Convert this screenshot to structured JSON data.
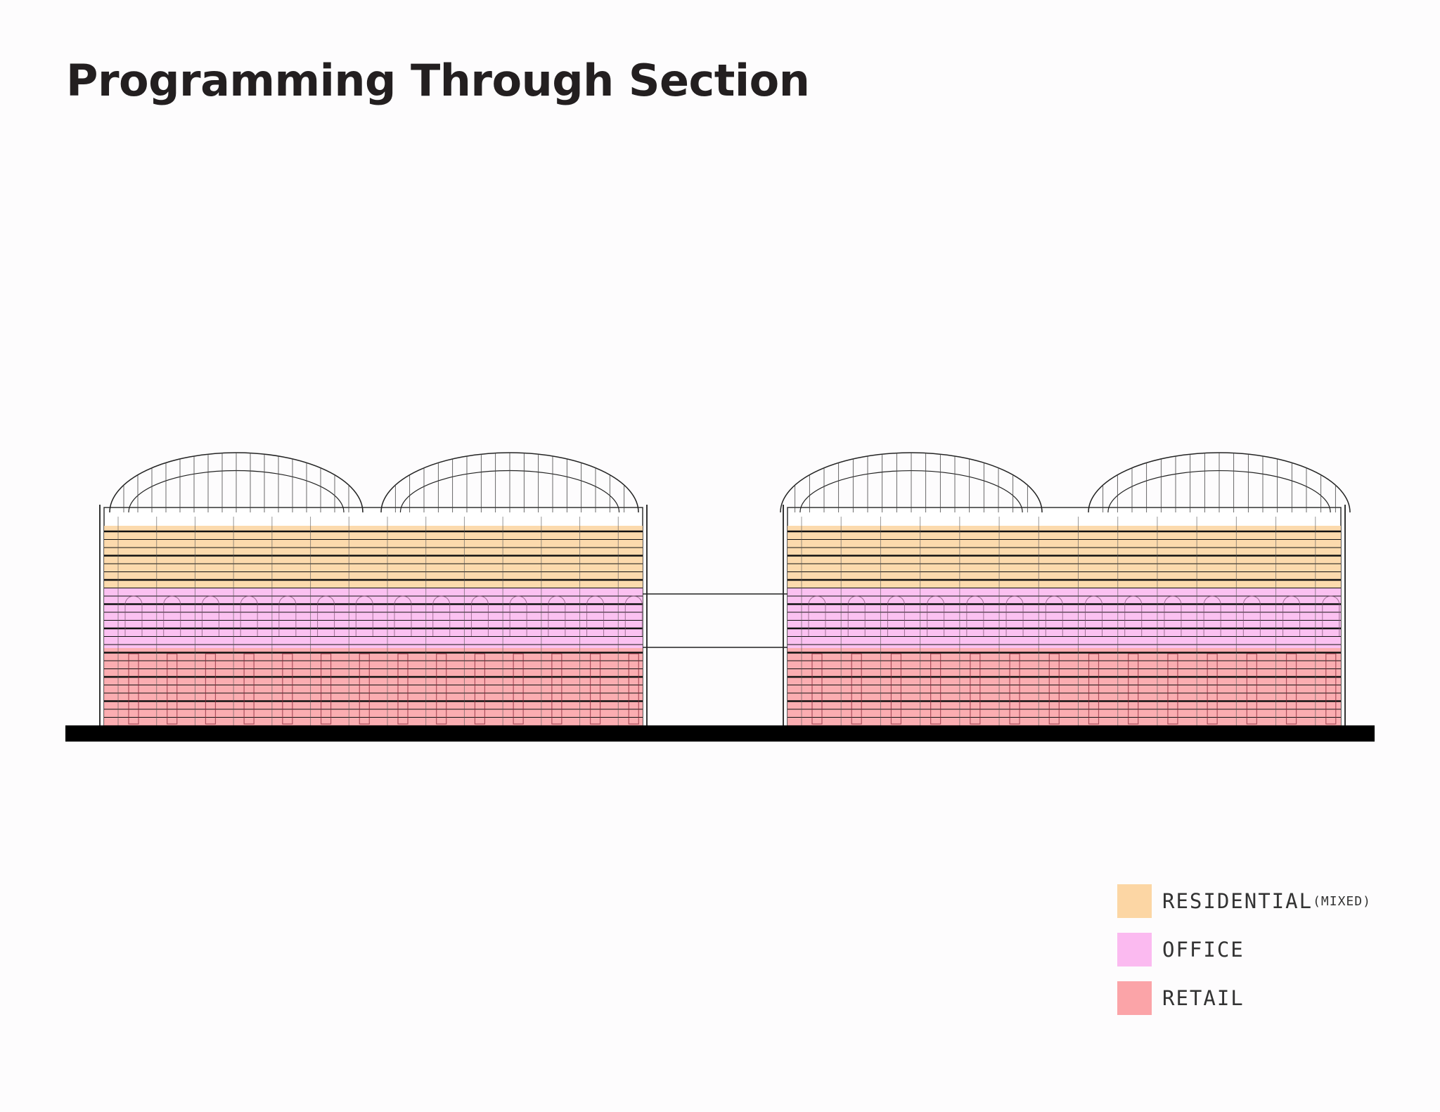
{
  "header": {
    "title": "Programming Through Section"
  },
  "legend": [
    {
      "label": "RESIDENTIAL",
      "note": "(MIXED)",
      "color": "#fcd6a4"
    },
    {
      "label": "OFFICE",
      "color": "#fbbaf0"
    },
    {
      "label": "RETAIL",
      "color": "#fba4a8"
    }
  ]
}
